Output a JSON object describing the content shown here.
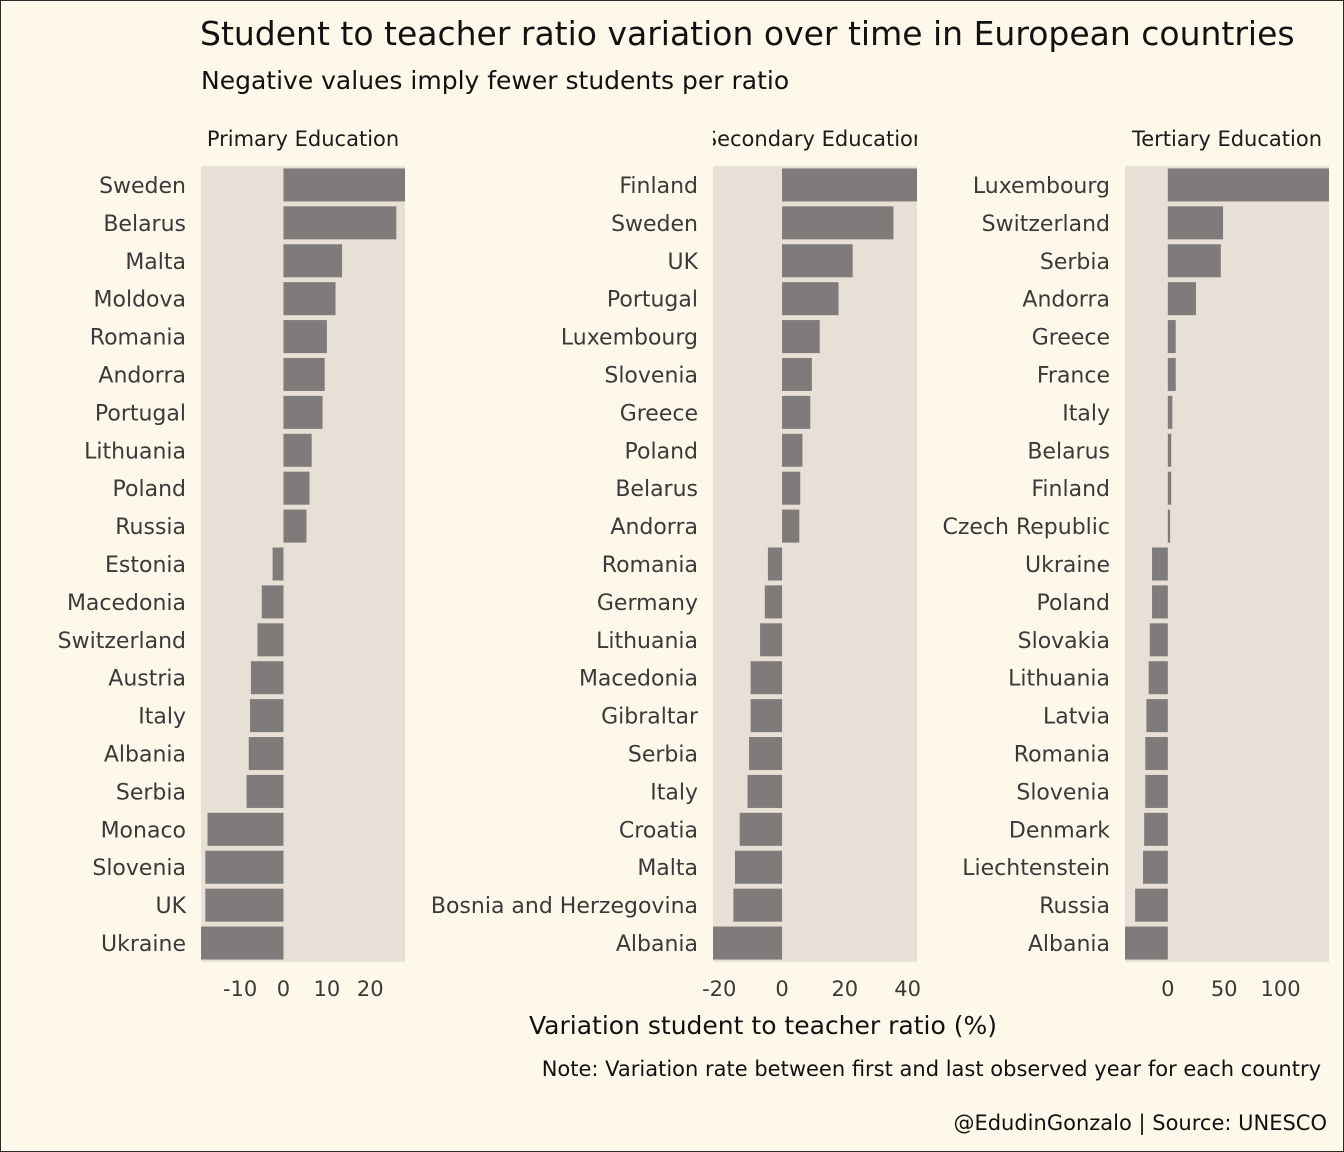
{
  "chart_data": {
    "type": "bar",
    "orientation": "horizontal",
    "title": "Student to teacher ratio variation over time in European countries",
    "subtitle": "Negative values imply fewer students per ratio",
    "xlabel": "Variation student to teacher ratio (%)",
    "note": "Note: Variation rate between first and last observed year for each country",
    "caption": "@EdudinGonzalo | Source: UNESCO",
    "colors": {
      "background": "#fdf8ea",
      "panel": "#e8dfd6",
      "bar": "#7f7b7b"
    },
    "grid": false,
    "panels": [
      {
        "title": "Primary Education",
        "xlim": [
          -19,
          28
        ],
        "xticks": [
          -10,
          0,
          10,
          20
        ],
        "categories": [
          "Sweden",
          "Belarus",
          "Malta",
          "Moldova",
          "Romania",
          "Andorra",
          "Portugal",
          "Lithuania",
          "Poland",
          "Russia",
          "Estonia",
          "Macedonia",
          "Switzerland",
          "Austria",
          "Italy",
          "Albania",
          "Serbia",
          "Monaco",
          "Slovenia",
          "UK",
          "Ukraine"
        ],
        "values": [
          28,
          26,
          13.5,
          12,
          10,
          9.5,
          9,
          6.5,
          6,
          5.3,
          -2.5,
          -5,
          -6,
          -7.5,
          -7.7,
          -8,
          -8.5,
          -17.5,
          -18,
          -18,
          -19
        ]
      },
      {
        "title": "Secondary Education",
        "xlim": [
          -22,
          43
        ],
        "xticks": [
          -20,
          0,
          20,
          40
        ],
        "categories": [
          "Finland",
          "Sweden",
          "UK",
          "Portugal",
          "Luxembourg",
          "Slovenia",
          "Greece",
          "Poland",
          "Belarus",
          "Andorra",
          "Romania",
          "Germany",
          "Lithuania",
          "Macedonia",
          "Gibraltar",
          "Serbia",
          "Italy",
          "Croatia",
          "Malta",
          "Bosnia and Herzegovina",
          "Albania"
        ],
        "values": [
          43,
          35.5,
          22.5,
          18,
          12,
          9.5,
          9,
          6.5,
          5.8,
          5.5,
          -4.5,
          -5.5,
          -7,
          -10,
          -10,
          -10.5,
          -11,
          -13.5,
          -15,
          -15.5,
          -22
        ]
      },
      {
        "title": "Tertiary Education",
        "xlim": [
          -38,
          143
        ],
        "xticks": [
          0,
          50,
          100
        ],
        "categories": [
          "Luxembourg",
          "Switzerland",
          "Serbia",
          "Andorra",
          "Greece",
          "France",
          "Italy",
          "Belarus",
          "Finland",
          "Czech Republic",
          "Ukraine",
          "Poland",
          "Slovakia",
          "Lithuania",
          "Latvia",
          "Romania",
          "Slovenia",
          "Denmark",
          "Liechtenstein",
          "Russia",
          "Albania"
        ],
        "values": [
          143,
          49,
          47,
          25,
          7,
          7,
          4,
          3,
          3,
          2,
          -14,
          -14,
          -16,
          -17,
          -19,
          -20,
          -20,
          -21,
          -22,
          -29,
          -38
        ]
      }
    ]
  }
}
